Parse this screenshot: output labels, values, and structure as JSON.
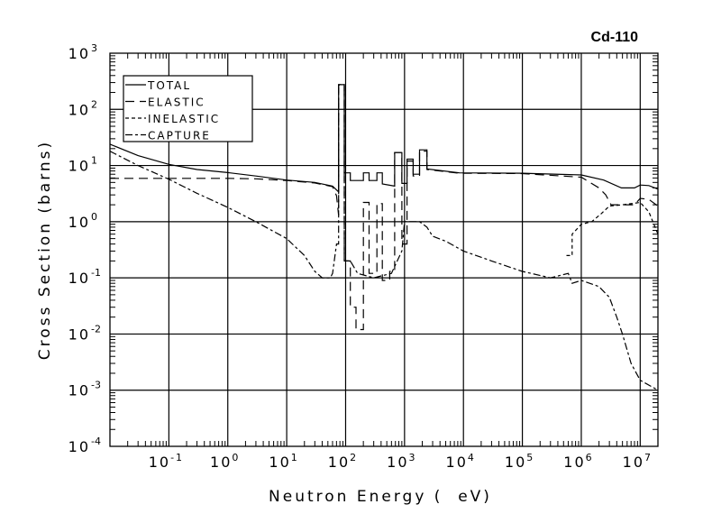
{
  "chart_data": {
    "type": "line",
    "title": "Cd-110",
    "xlabel": "Neutron Energy (  eV)",
    "ylabel": "Cross Section (barns)",
    "xscale": "log",
    "yscale": "log",
    "xlim": [
      0.01,
      20000000
    ],
    "ylim": [
      0.0001,
      1000
    ],
    "grid": true,
    "legend_position": "top-left",
    "x_ticks": [
      {
        "base": "10",
        "exp": "-1",
        "value": 0.1
      },
      {
        "base": "10",
        "exp": "0",
        "value": 1
      },
      {
        "base": "10",
        "exp": "1",
        "value": 10
      },
      {
        "base": "10",
        "exp": "2",
        "value": 100
      },
      {
        "base": "10",
        "exp": "3",
        "value": 1000
      },
      {
        "base": "10",
        "exp": "4",
        "value": 10000
      },
      {
        "base": "10",
        "exp": "5",
        "value": 100000
      },
      {
        "base": "10",
        "exp": "6",
        "value": 1000000
      },
      {
        "base": "10",
        "exp": "7",
        "value": 10000000
      }
    ],
    "y_ticks": [
      {
        "base": "10",
        "exp": "3",
        "value": 1000
      },
      {
        "base": "10",
        "exp": "2",
        "value": 100
      },
      {
        "base": "10",
        "exp": "1",
        "value": 10
      },
      {
        "base": "10",
        "exp": "0",
        "value": 1
      },
      {
        "base": "10",
        "exp": "-1",
        "value": 0.1
      },
      {
        "base": "10",
        "exp": "-2",
        "value": 0.01
      },
      {
        "base": "10",
        "exp": "-3",
        "value": 0.001
      },
      {
        "base": "10",
        "exp": "-4",
        "value": 0.0001
      }
    ],
    "series": [
      {
        "name": "TOTAL",
        "dash": "solid",
        "points": [
          [
            0.01,
            24
          ],
          [
            0.03,
            15
          ],
          [
            0.1,
            10.5
          ],
          [
            0.3,
            8.5
          ],
          [
            1,
            7.5
          ],
          [
            3,
            6.5
          ],
          [
            10,
            5.5
          ],
          [
            30,
            5
          ],
          [
            60,
            4.3
          ],
          [
            76,
            3.4
          ],
          [
            76,
            275
          ],
          [
            95,
            275
          ],
          [
            95,
            7.4
          ],
          [
            120,
            7.4
          ],
          [
            120,
            5.4
          ],
          [
            200,
            5.4
          ],
          [
            200,
            7.4
          ],
          [
            250,
            7.4
          ],
          [
            250,
            5.4
          ],
          [
            340,
            5.4
          ],
          [
            340,
            7.4
          ],
          [
            420,
            7.4
          ],
          [
            420,
            4.7
          ],
          [
            680,
            4.3
          ],
          [
            680,
            17
          ],
          [
            900,
            17
          ],
          [
            900,
            4.8
          ],
          [
            1100,
            4.8
          ],
          [
            1100,
            13
          ],
          [
            1400,
            13
          ],
          [
            1400,
            7
          ],
          [
            1800,
            7
          ],
          [
            1800,
            19
          ],
          [
            2400,
            19
          ],
          [
            2400,
            8.7
          ],
          [
            8500,
            7.4
          ],
          [
            100000,
            7.3
          ],
          [
            1000000,
            6.8
          ],
          [
            2400000,
            5.5
          ],
          [
            4800000,
            4
          ],
          [
            8000000,
            4
          ],
          [
            10000000,
            4.5
          ],
          [
            14000000,
            4.4
          ],
          [
            20000000,
            3.8
          ]
        ]
      },
      {
        "name": "ELASTIC",
        "dash": "10,6",
        "points": [
          [
            0.01,
            5.9
          ],
          [
            1,
            5.9
          ],
          [
            3,
            5.8
          ],
          [
            10,
            5.4
          ],
          [
            30,
            4.9
          ],
          [
            60,
            4.2
          ],
          [
            70,
            2.9
          ],
          [
            76,
            1.3
          ],
          [
            76,
            270
          ],
          [
            95,
            270
          ],
          [
            95,
            0.2
          ],
          [
            120,
            0.2
          ],
          [
            120,
            0.03
          ],
          [
            150,
            0.03
          ],
          [
            150,
            0.012
          ],
          [
            200,
            0.012
          ],
          [
            200,
            2.2
          ],
          [
            250,
            2.2
          ],
          [
            250,
            0.12
          ],
          [
            340,
            0.12
          ],
          [
            340,
            2.1
          ],
          [
            420,
            2.1
          ],
          [
            420,
            0.09
          ],
          [
            560,
            0.09
          ],
          [
            560,
            0.13
          ],
          [
            680,
            0.13
          ],
          [
            680,
            17
          ],
          [
            900,
            17
          ],
          [
            900,
            0.4
          ],
          [
            1100,
            0.4
          ],
          [
            1100,
            12
          ],
          [
            1400,
            12
          ],
          [
            1400,
            6.5
          ],
          [
            1800,
            6.5
          ],
          [
            1800,
            18
          ],
          [
            2400,
            18
          ],
          [
            2400,
            8.5
          ],
          [
            8500,
            7.3
          ],
          [
            100000,
            7.2
          ],
          [
            1000000,
            6.2
          ],
          [
            2000000,
            4
          ],
          [
            2600000,
            3
          ],
          [
            3200000,
            2
          ],
          [
            8000000,
            2
          ],
          [
            10000000,
            2.6
          ],
          [
            14000000,
            2.5
          ],
          [
            20000000,
            1.9
          ]
        ]
      },
      {
        "name": "INELASTIC",
        "dash": "4,3",
        "points": [
          [
            560000,
            0.25
          ],
          [
            700000,
            0.25
          ],
          [
            700000,
            0.6
          ],
          [
            1000000,
            0.9
          ],
          [
            1500000,
            1.0
          ],
          [
            2200000,
            1.4
          ],
          [
            3000000,
            1.9
          ],
          [
            5000000,
            2.0
          ],
          [
            10000000,
            2.2
          ],
          [
            14000000,
            1.5
          ],
          [
            20000000,
            0.6
          ]
        ]
      },
      {
        "name": "CAPTURE",
        "dash": "8,3,3,3",
        "points": [
          [
            0.01,
            18
          ],
          [
            0.03,
            10
          ],
          [
            0.1,
            5.7
          ],
          [
            0.3,
            3.2
          ],
          [
            1,
            1.8
          ],
          [
            3,
            1.0
          ],
          [
            10,
            0.5
          ],
          [
            20,
            0.25
          ],
          [
            30,
            0.13
          ],
          [
            40,
            0.1
          ],
          [
            55,
            0.1
          ],
          [
            60,
            0.12
          ],
          [
            70,
            0.4
          ],
          [
            76,
            0.4
          ],
          [
            76,
            275
          ],
          [
            95,
            275
          ],
          [
            95,
            0.2
          ],
          [
            120,
            0.2
          ],
          [
            160,
            0.12
          ],
          [
            300,
            0.1
          ],
          [
            600,
            0.12
          ],
          [
            900,
            0.3
          ],
          [
            1000,
            1.0
          ],
          [
            1800,
            1.0
          ],
          [
            2400,
            0.8
          ],
          [
            3000,
            0.55
          ],
          [
            5000,
            0.45
          ],
          [
            10000,
            0.3
          ],
          [
            30000,
            0.2
          ],
          [
            100000,
            0.13
          ],
          [
            300000,
            0.1
          ],
          [
            600000,
            0.12
          ],
          [
            700000,
            0.08
          ],
          [
            1000000,
            0.09
          ],
          [
            2000000,
            0.07
          ],
          [
            3000000,
            0.045
          ],
          [
            4000000,
            0.02
          ],
          [
            5000000,
            0.01
          ],
          [
            7000000,
            0.003
          ],
          [
            10000000,
            0.0015
          ],
          [
            20000000,
            0.001
          ]
        ]
      }
    ]
  }
}
